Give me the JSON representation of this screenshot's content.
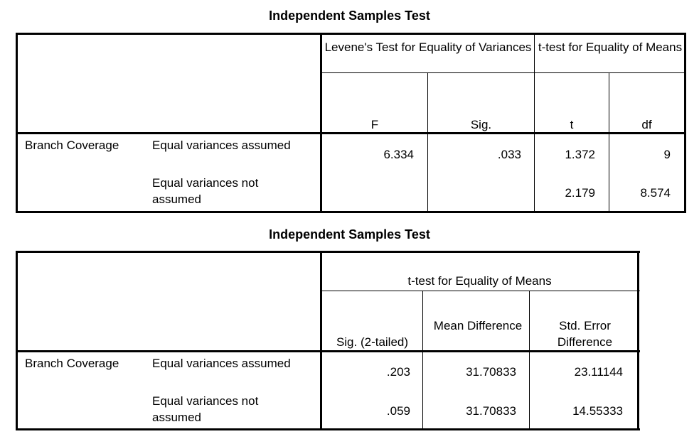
{
  "table1": {
    "title": "Independent Samples Test",
    "group_levene": "Levene's Test for Equality of Variances",
    "group_ttest": "t-test for Equality of Means",
    "col_f": "F",
    "col_sig": "Sig.",
    "col_t": "t",
    "col_df": "df",
    "row_label": "Branch Coverage",
    "rows": [
      {
        "label": "Equal variances assumed",
        "f": "6.334",
        "sig": ".033",
        "t": "1.372",
        "df": "9"
      },
      {
        "label": "Equal variances not assumed",
        "f": "",
        "sig": "",
        "t": "2.179",
        "df": "8.574"
      }
    ]
  },
  "table2": {
    "title": "Independent Samples Test",
    "group_ttest": "t-test for Equality of Means",
    "col_sig2": "Sig. (2-tailed)",
    "col_meandiff": "Mean Difference",
    "col_sediff": "Std. Error Difference",
    "row_label": "Branch Coverage",
    "rows": [
      {
        "label": "Equal variances assumed",
        "sig2": ".203",
        "meandiff": "31.70833",
        "sediff": "23.11144"
      },
      {
        "label": "Equal variances not assumed",
        "sig2": ".059",
        "meandiff": "31.70833",
        "sediff": "14.55333"
      }
    ]
  }
}
